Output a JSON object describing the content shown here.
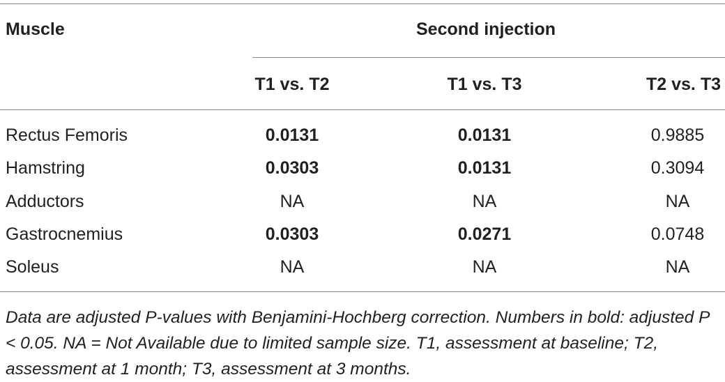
{
  "table": {
    "header": {
      "row_label": "Muscle",
      "group_label": "Second injection",
      "columns": [
        "T1 vs. T2",
        "T1 vs. T3",
        "T2 vs. T3"
      ]
    },
    "rows": [
      {
        "muscle": "Rectus Femoris",
        "values": [
          {
            "text": "0.0131",
            "bold": true
          },
          {
            "text": "0.0131",
            "bold": true
          },
          {
            "text": "0.9885",
            "bold": false
          }
        ]
      },
      {
        "muscle": "Hamstring",
        "values": [
          {
            "text": "0.0303",
            "bold": true
          },
          {
            "text": "0.0131",
            "bold": true
          },
          {
            "text": "0.3094",
            "bold": false
          }
        ]
      },
      {
        "muscle": "Adductors",
        "values": [
          {
            "text": "NA",
            "bold": false
          },
          {
            "text": "NA",
            "bold": false
          },
          {
            "text": "NA",
            "bold": false
          }
        ]
      },
      {
        "muscle": "Gastrocnemius",
        "values": [
          {
            "text": "0.0303",
            "bold": true
          },
          {
            "text": "0.0271",
            "bold": true
          },
          {
            "text": "0.0748",
            "bold": false
          }
        ]
      },
      {
        "muscle": "Soleus",
        "values": [
          {
            "text": "NA",
            "bold": false
          },
          {
            "text": "NA",
            "bold": false
          },
          {
            "text": "NA",
            "bold": false
          }
        ]
      }
    ],
    "footnote": "Data are adjusted P-values with Benjamini-Hochberg correction. Numbers in bold: adjusted P < 0.05. NA = Not Available due to limited sample size. T1, assessment at baseline; T2, assessment at 1 month; T3, assessment at 3 months."
  }
}
